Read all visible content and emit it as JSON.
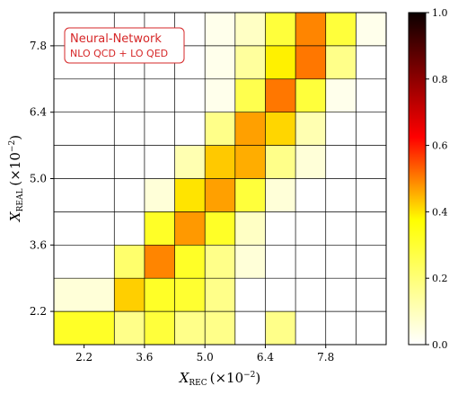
{
  "chart_data": {
    "type": "heatmap",
    "xlabel_main": "X",
    "xlabel_sub": "REC",
    "xlabel_unit": "(×10",
    "xlabel_exp": "−2",
    "xlabel_close": ")",
    "ylabel_main": "X",
    "ylabel_sub": "REAL",
    "ylabel_unit": "(×10",
    "ylabel_exp": "−2",
    "ylabel_close": ")",
    "x_ticks": [
      {
        "value": 2.2,
        "label": "2.2"
      },
      {
        "value": 3.6,
        "label": "3.6"
      },
      {
        "value": 5.0,
        "label": "5.0"
      },
      {
        "value": 6.4,
        "label": "6.4"
      },
      {
        "value": 7.8,
        "label": "7.8"
      }
    ],
    "y_ticks": [
      {
        "value": 2.2,
        "label": "2.2"
      },
      {
        "value": 3.6,
        "label": "3.6"
      },
      {
        "value": 5.0,
        "label": "5.0"
      },
      {
        "value": 6.4,
        "label": "6.4"
      },
      {
        "value": 7.8,
        "label": "7.8"
      }
    ],
    "xlim": [
      1.5,
      9.2
    ],
    "ylim": [
      1.5,
      8.5
    ],
    "x_bin_edges": [
      1.5,
      2.9,
      3.6,
      4.3,
      5.0,
      5.7,
      6.4,
      7.1,
      7.8,
      8.5,
      9.2
    ],
    "y_bin_edges": [
      1.5,
      2.2,
      2.9,
      3.6,
      4.3,
      5.0,
      5.7,
      6.4,
      7.1,
      7.8,
      8.5
    ],
    "x_bin_edges_note": "",
    "values": [
      [
        0.22,
        0.12,
        0.2,
        0.12,
        0.12,
        0.0,
        0.12,
        0.0,
        0.0,
        0.0
      ],
      [
        0.04,
        0.33,
        0.22,
        0.21,
        0.12,
        0.0,
        0.0,
        0.0,
        0.0,
        0.0
      ],
      [
        0.0,
        0.15,
        0.44,
        0.22,
        0.12,
        0.04,
        0.0,
        0.0,
        0.0,
        0.0
      ],
      [
        0.0,
        0.0,
        0.22,
        0.41,
        0.22,
        0.06,
        0.0,
        0.0,
        0.0,
        0.0
      ],
      [
        0.0,
        0.0,
        0.04,
        0.3,
        0.4,
        0.2,
        0.04,
        0.0,
        0.0,
        0.0
      ],
      [
        0.0,
        0.0,
        0.0,
        0.08,
        0.34,
        0.38,
        0.12,
        0.04,
        0.0,
        0.0
      ],
      [
        0.0,
        0.0,
        0.0,
        0.0,
        0.12,
        0.4,
        0.32,
        0.08,
        0.0,
        0.0
      ],
      [
        0.0,
        0.0,
        0.0,
        0.0,
        0.02,
        0.18,
        0.46,
        0.2,
        0.02,
        0.0
      ],
      [
        0.0,
        0.0,
        0.0,
        0.0,
        0.02,
        0.1,
        0.28,
        0.46,
        0.12,
        0.0
      ],
      [
        0.0,
        0.0,
        0.0,
        0.0,
        0.02,
        0.06,
        0.2,
        0.44,
        0.2,
        0.02
      ]
    ],
    "colorbar": {
      "colormap": "hot_r",
      "range": [
        0.0,
        1.0
      ],
      "ticks": [
        {
          "value": 0.0,
          "label": "0.0"
        },
        {
          "value": 0.2,
          "label": "0.2"
        },
        {
          "value": 0.4,
          "label": "0.4"
        },
        {
          "value": 0.6,
          "label": "0.6"
        },
        {
          "value": 0.8,
          "label": "0.8"
        },
        {
          "value": 1.0,
          "label": "1.0"
        }
      ]
    },
    "legend": {
      "title": "Neural-Network",
      "subtitle": "NLO QCD + LO QED",
      "placement": "top-left",
      "color": "#d62728"
    },
    "grid": true
  }
}
